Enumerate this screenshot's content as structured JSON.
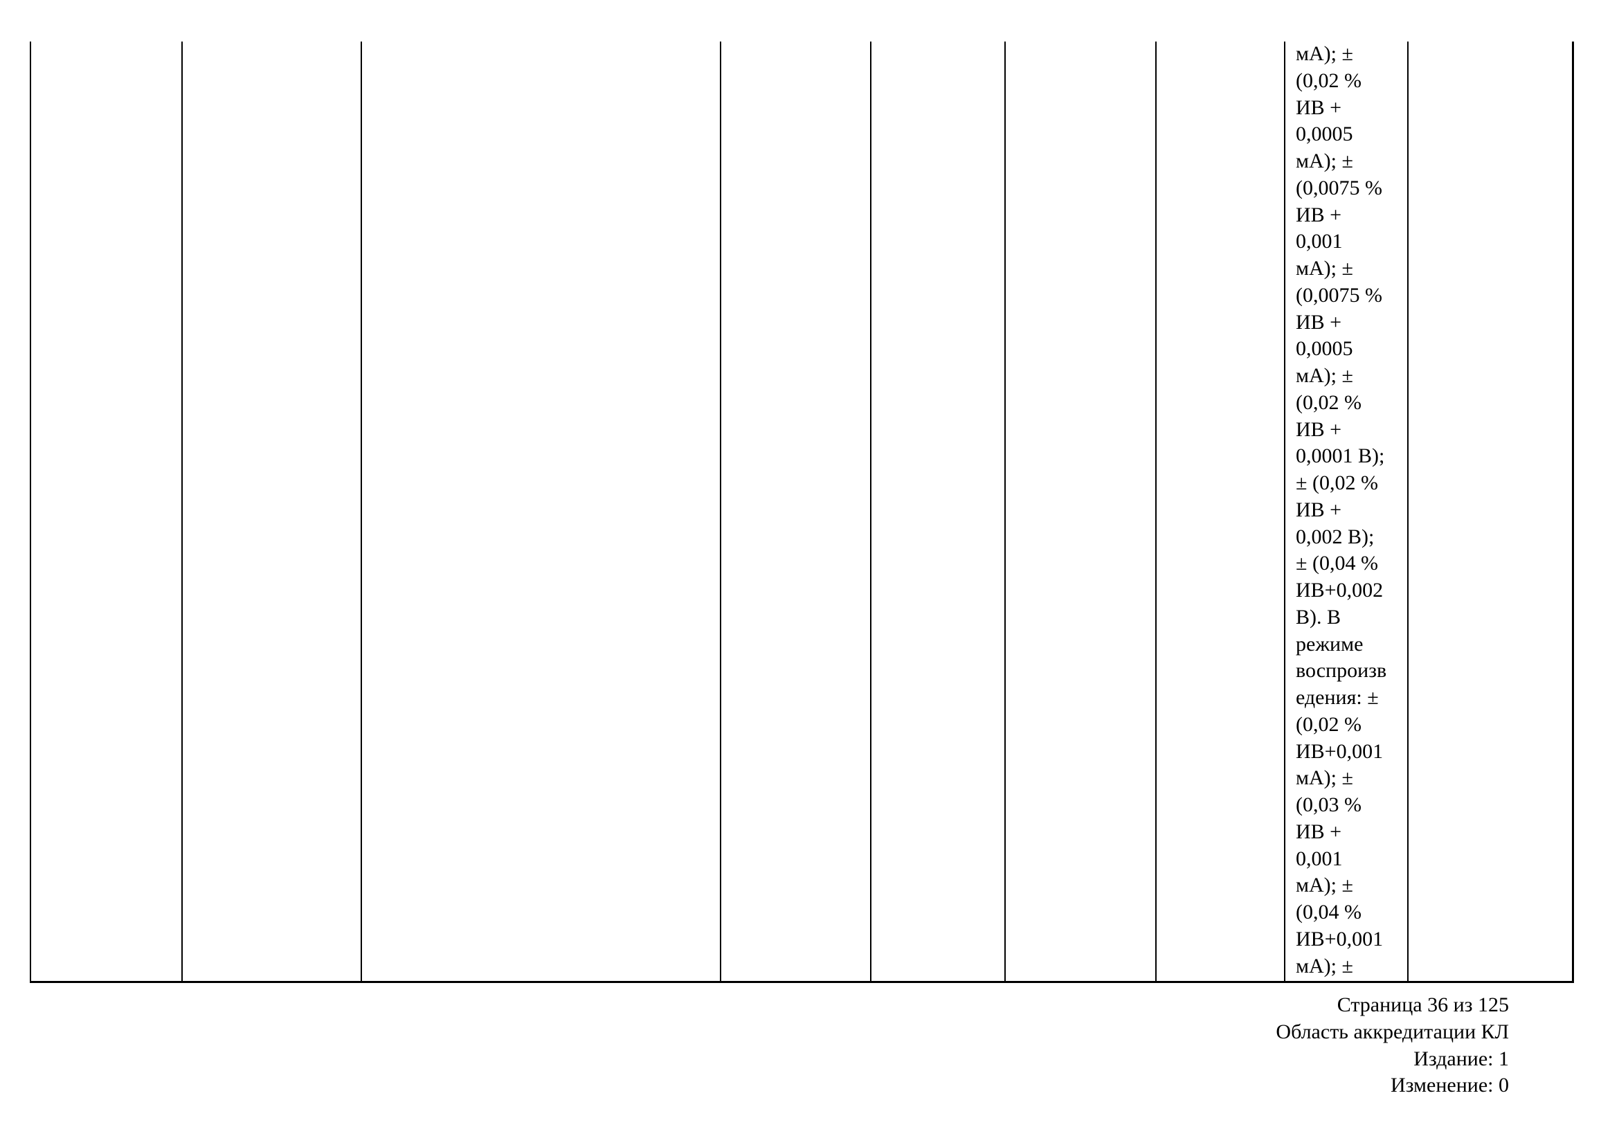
{
  "table": {
    "cell_lines": [
      "мА); ±",
      "(0,02 %",
      "ИВ +",
      "0,0005",
      "мА); ±",
      "(0,0075 %",
      "ИВ +",
      "0,001",
      "мА); ±",
      "(0,0075 %",
      "ИВ +",
      "0,0005",
      "мА); ±",
      "(0,02 %",
      "ИВ +",
      "0,0001 В);",
      "± (0,02 %",
      "ИВ +",
      "0,002 В);",
      "± (0,04 %",
      "ИВ+0,002",
      "В). В",
      "режиме",
      "воспроизв",
      "едения: ±",
      "(0,02 %",
      "ИВ+0,001",
      "мА); ±",
      "(0,03 %",
      "ИВ +",
      "0,001",
      "мА); ±",
      "(0,04 %",
      "ИВ+0,001",
      "мА); ±"
    ]
  },
  "footer": {
    "page": "Страница 36 из 125",
    "doc": "Область аккредитации КЛ",
    "edition": "Издание: 1",
    "change": "Изменение: 0"
  }
}
